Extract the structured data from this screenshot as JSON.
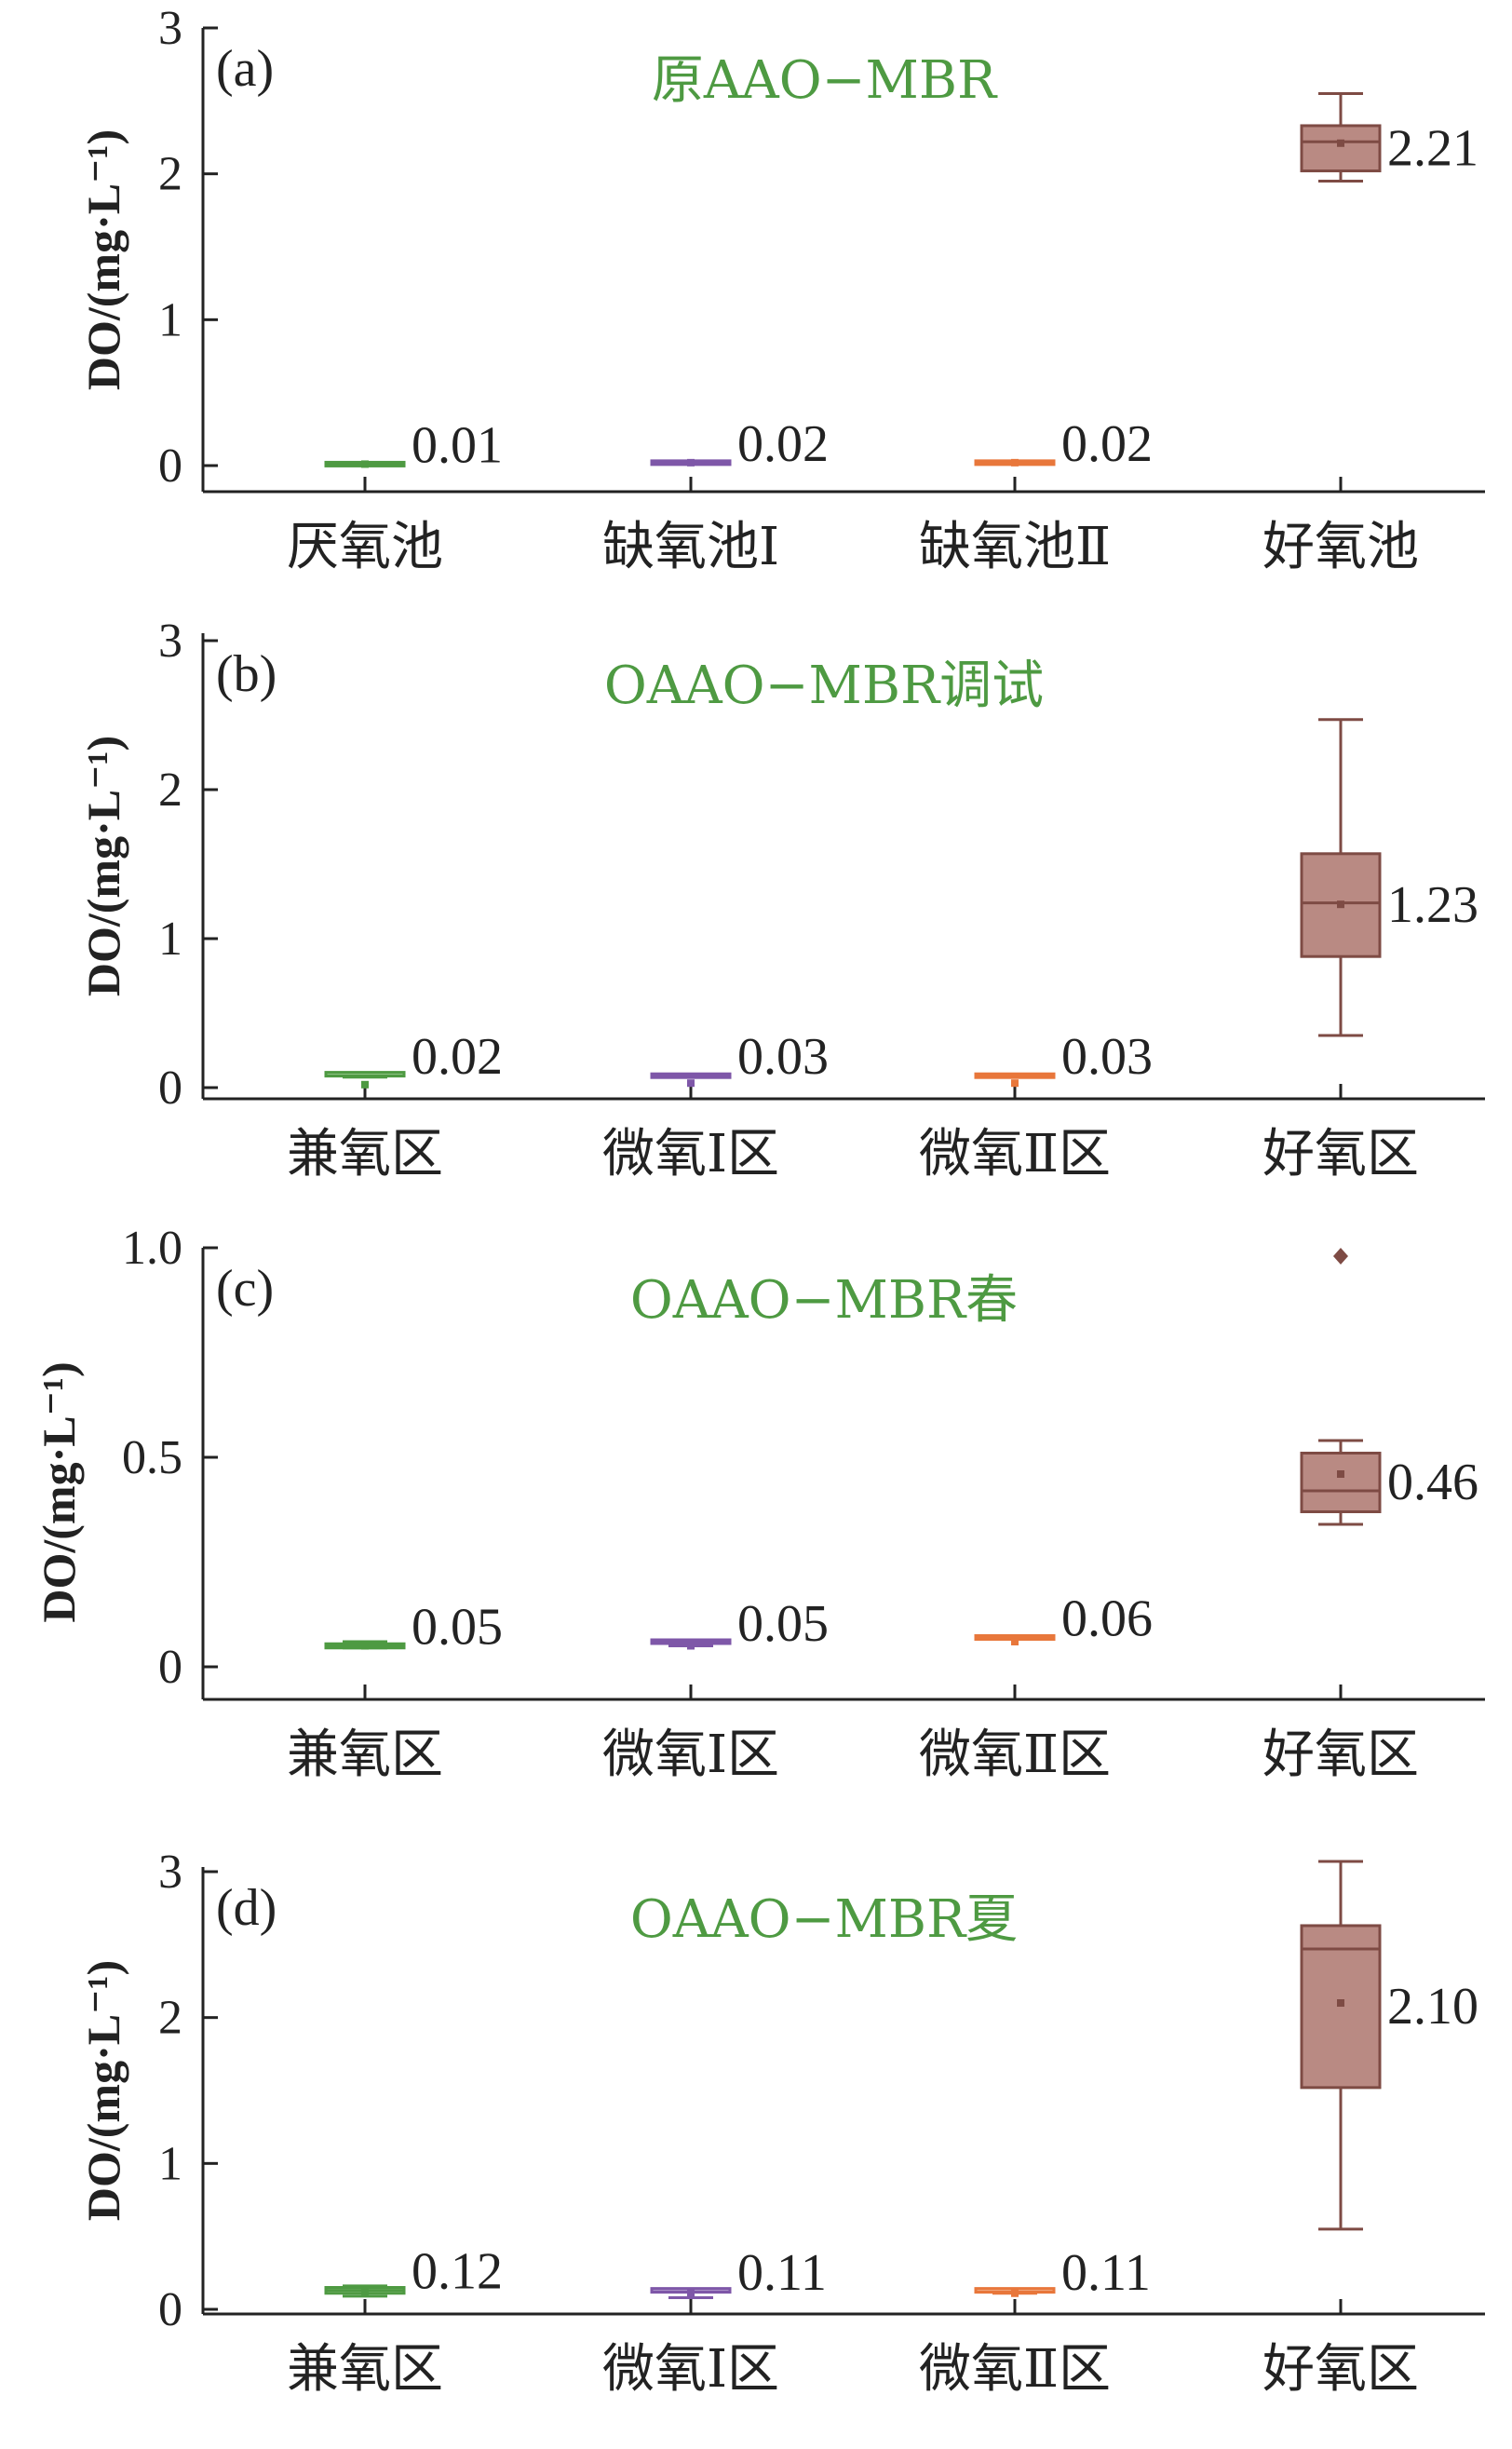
{
  "chart_data": [
    {
      "type": "box",
      "panel_label": "(a)",
      "title": "原AAO−MBR",
      "ylabel": "DO/(mg·L⁻¹)",
      "ylim": [
        0,
        3
      ],
      "yticks": [
        0,
        1,
        2,
        3
      ],
      "ytick_labels": [
        "0",
        "1",
        "2",
        "3"
      ],
      "categories": [
        "厌氧池",
        "缺氧池Ⅰ",
        "缺氧池Ⅱ",
        "好氧池"
      ],
      "colors": [
        "#4e9a42",
        "#7e57a8",
        "#e8773b",
        "#7e4b44"
      ],
      "box_fills": [
        "#b3d9a8",
        "#c8b6dc",
        "#f5c4a6",
        "#b98a83"
      ],
      "boxes": [
        {
          "whisker_low": 0.01,
          "q1": 0.01,
          "median": 0.01,
          "q3": 0.01,
          "whisker_high": 0.01,
          "mean": 0.01,
          "mean_label": "0.01"
        },
        {
          "whisker_low": 0.02,
          "q1": 0.02,
          "median": 0.02,
          "q3": 0.02,
          "whisker_high": 0.02,
          "mean": 0.02,
          "mean_label": "0.02"
        },
        {
          "whisker_low": 0.02,
          "q1": 0.02,
          "median": 0.02,
          "q3": 0.02,
          "whisker_high": 0.02,
          "mean": 0.02,
          "mean_label": "0.02"
        },
        {
          "whisker_low": 1.95,
          "q1": 2.02,
          "median": 2.22,
          "q3": 2.33,
          "whisker_high": 2.55,
          "mean": 2.21,
          "mean_label": "2.21"
        }
      ]
    },
    {
      "type": "box",
      "panel_label": "(b)",
      "title": "OAAO−MBR调试",
      "ylabel": "DO/(mg·L⁻¹)",
      "ylim": [
        0,
        3
      ],
      "yticks": [
        0,
        1,
        2,
        3
      ],
      "ytick_labels": [
        "0",
        "1",
        "2",
        "3"
      ],
      "categories": [
        "兼氧区",
        "微氧Ⅰ区",
        "微氧Ⅱ区",
        "好氧区"
      ],
      "colors": [
        "#4e9a42",
        "#7e57a8",
        "#e8773b",
        "#7e4b44"
      ],
      "box_fills": [
        "#b3d9a8",
        "#c8b6dc",
        "#f5c4a6",
        "#b98a83"
      ],
      "boxes": [
        {
          "whisker_low": 0.07,
          "q1": 0.07,
          "median": 0.08,
          "q3": 0.09,
          "whisker_high": 0.09,
          "mean": 0.02,
          "mean_label": "0.02"
        },
        {
          "whisker_low": 0.08,
          "q1": 0.08,
          "median": 0.08,
          "q3": 0.08,
          "whisker_high": 0.08,
          "mean": 0.03,
          "mean_label": "0.03"
        },
        {
          "whisker_low": 0.08,
          "q1": 0.08,
          "median": 0.08,
          "q3": 0.08,
          "whisker_high": 0.08,
          "mean": 0.03,
          "mean_label": "0.03"
        },
        {
          "whisker_low": 0.35,
          "q1": 0.88,
          "median": 1.24,
          "q3": 1.57,
          "whisker_high": 2.47,
          "mean": 1.23,
          "mean_label": "1.23"
        }
      ]
    },
    {
      "type": "box",
      "panel_label": "(c)",
      "title": "OAAO−MBR春",
      "ylabel": "DO/(mg·L⁻¹)",
      "ylim": [
        -0.09,
        1.0
      ],
      "yticks": [
        0,
        0.5,
        1.0
      ],
      "ytick_labels": [
        "0",
        "0.5",
        "1.0"
      ],
      "categories": [
        "兼氧区",
        "微氧Ⅰ区",
        "微氧Ⅱ区",
        "好氧区"
      ],
      "colors": [
        "#4e9a42",
        "#7e57a8",
        "#e8773b",
        "#7e4b44"
      ],
      "box_fills": [
        "#b3d9a8",
        "#c8b6dc",
        "#f5c4a6",
        "#b98a83"
      ],
      "boxes": [
        {
          "whisker_low": 0.045,
          "q1": 0.045,
          "median": 0.05,
          "q3": 0.055,
          "whisker_high": 0.06,
          "mean": 0.05,
          "mean_label": "0.05"
        },
        {
          "whisker_low": 0.05,
          "q1": 0.055,
          "median": 0.058,
          "q3": 0.06,
          "whisker_high": 0.06,
          "mean": 0.05,
          "mean_label": "0.05"
        },
        {
          "whisker_low": 0.07,
          "q1": 0.07,
          "median": 0.07,
          "q3": 0.07,
          "whisker_high": 0.07,
          "mean": 0.06,
          "mean_label": "0.06"
        },
        {
          "whisker_low": 0.34,
          "q1": 0.37,
          "median": 0.42,
          "q3": 0.51,
          "whisker_high": 0.54,
          "mean": 0.46,
          "mean_label": "0.46",
          "outliers": [
            0.98
          ]
        }
      ]
    },
    {
      "type": "box",
      "panel_label": "(d)",
      "title": "OAAO−MBR夏",
      "ylabel": "DO/(mg·L⁻¹)",
      "ylim": [
        0,
        3
      ],
      "yticks": [
        0,
        1,
        2,
        3
      ],
      "ytick_labels": [
        "0",
        "1",
        "2",
        "3"
      ],
      "categories": [
        "兼氧区",
        "微氧Ⅰ区",
        "微氧Ⅱ区",
        "好氧区"
      ],
      "colors": [
        "#4e9a42",
        "#7e57a8",
        "#e8773b",
        "#7e4b44"
      ],
      "box_fills": [
        "#b3d9a8",
        "#c8b6dc",
        "#f5c4a6",
        "#b98a83"
      ],
      "boxes": [
        {
          "whisker_low": 0.09,
          "q1": 0.11,
          "median": 0.13,
          "q3": 0.15,
          "whisker_high": 0.16,
          "mean": 0.12,
          "mean_label": "0.12"
        },
        {
          "whisker_low": 0.08,
          "q1": 0.11,
          "median": 0.12,
          "q3": 0.13,
          "whisker_high": 0.14,
          "mean": 0.11,
          "mean_label": "0.11"
        },
        {
          "whisker_low": 0.11,
          "q1": 0.11,
          "median": 0.12,
          "q3": 0.13,
          "whisker_high": 0.13,
          "mean": 0.11,
          "mean_label": "0.11"
        },
        {
          "whisker_low": 0.55,
          "q1": 1.52,
          "median": 2.47,
          "q3": 2.63,
          "whisker_high": 3.07,
          "mean": 2.1,
          "mean_label": "2.10"
        }
      ]
    }
  ]
}
